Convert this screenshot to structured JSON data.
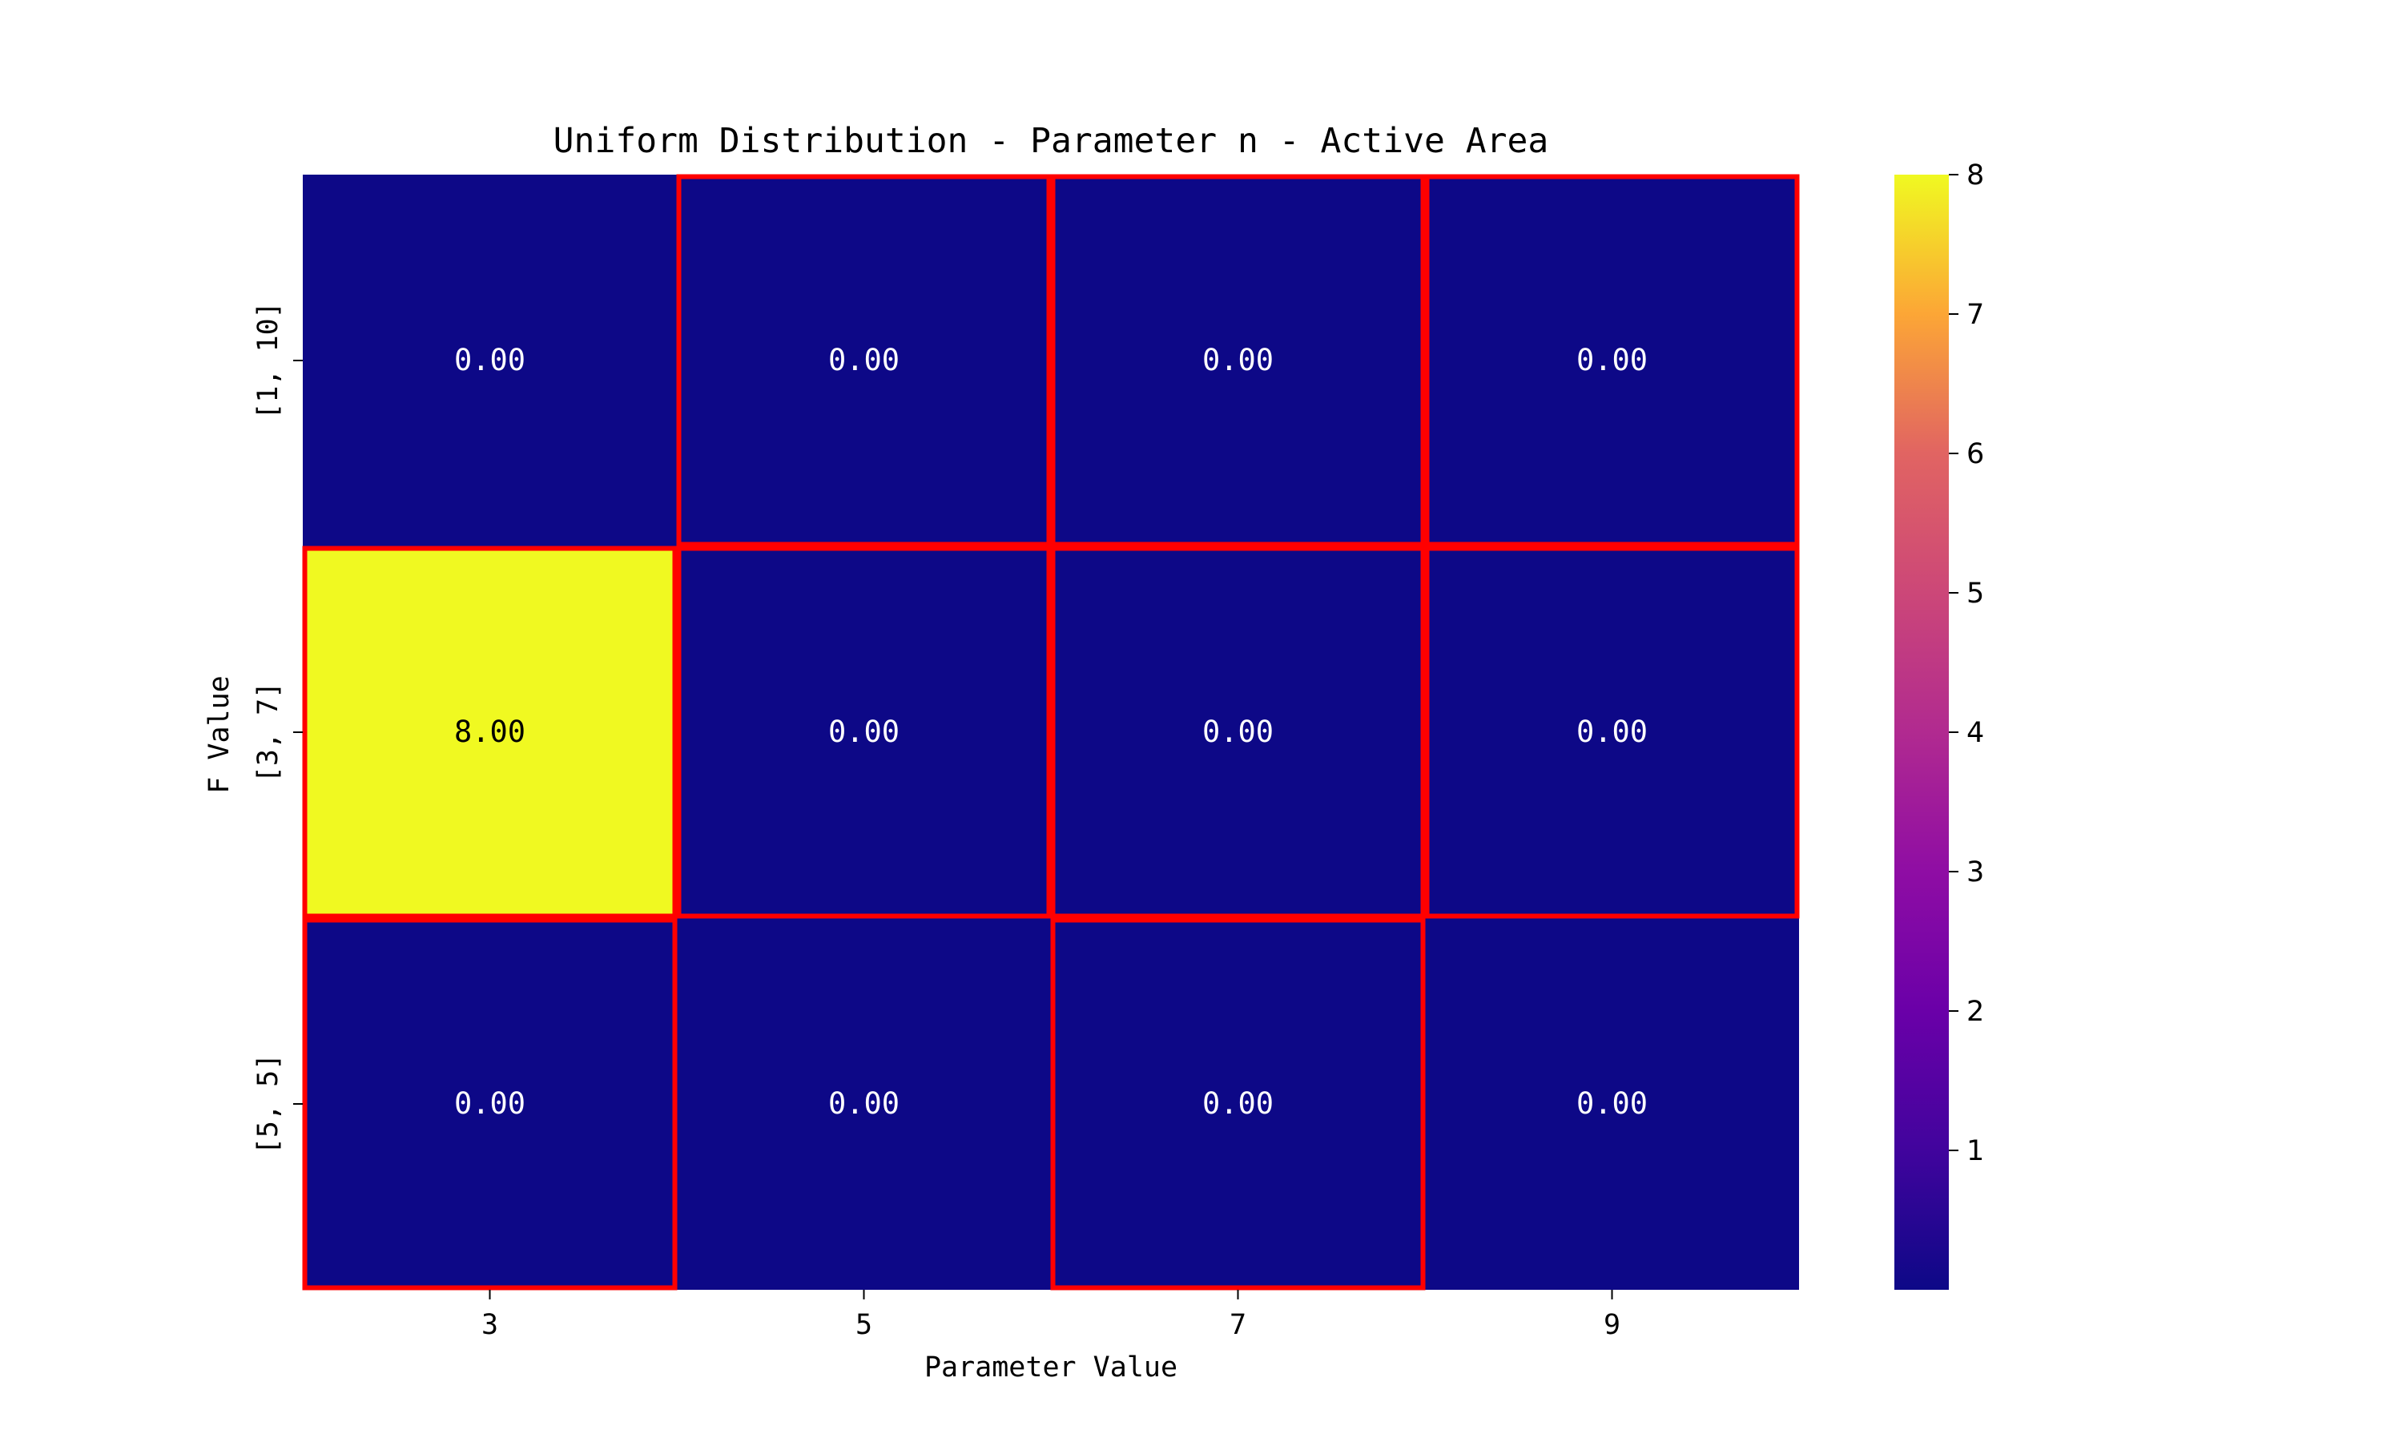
{
  "chart_data": {
    "type": "heatmap",
    "title": "Uniform Distribution - Parameter n - Active Area",
    "xlabel": "Parameter Value",
    "ylabel": "F Value",
    "x_categories": [
      "3",
      "5",
      "7",
      "9"
    ],
    "y_categories": [
      "[1, 10]",
      "[3, 7]",
      "[5, 5]"
    ],
    "values": [
      [
        0,
        0,
        0,
        0
      ],
      [
        8,
        0,
        0,
        0
      ],
      [
        0,
        0,
        0,
        0
      ]
    ],
    "value_format": "0.00",
    "highlighted_cells": [
      [
        0,
        1
      ],
      [
        0,
        2
      ],
      [
        0,
        3
      ],
      [
        1,
        0
      ],
      [
        1,
        1
      ],
      [
        1,
        2
      ],
      [
        1,
        3
      ],
      [
        2,
        0
      ],
      [
        2,
        2
      ]
    ],
    "highlight_color": "#ff0000",
    "colormap": "plasma",
    "colorbar": {
      "range": [
        0,
        8
      ],
      "ticks": [
        "1",
        "2",
        "3",
        "4",
        "5",
        "6",
        "7",
        "8"
      ]
    },
    "low_color": "#0d0887",
    "high_color": "#f0f921",
    "grid": false
  }
}
